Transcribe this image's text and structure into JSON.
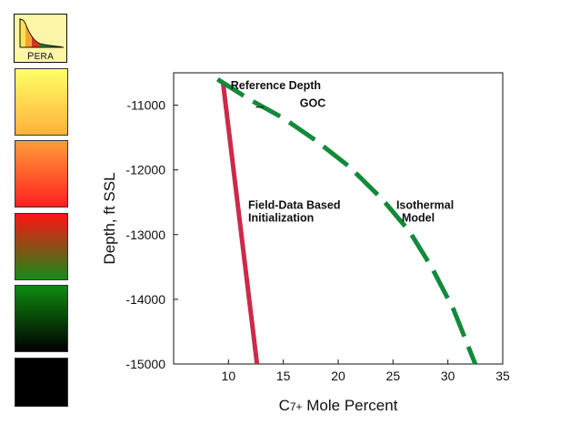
{
  "logo": {
    "first_letter": "P",
    "rest": "ERA",
    "icon": "distribution-curve-icon"
  },
  "sidebar_swatches": [
    {
      "from": "#ffff66",
      "to": "#ffb13b"
    },
    {
      "from": "#ff9c3a",
      "to": "#ff2020"
    },
    {
      "from": "#ff1414",
      "to": "#178a17"
    },
    {
      "from": "#0f8a0f",
      "to": "#000000"
    },
    {
      "from": "#000000",
      "to": "#000000"
    }
  ],
  "chart_data": {
    "type": "line",
    "xlabel_main": "C",
    "xlabel_sub": "7+",
    "xlabel_rest": " Mole Percent",
    "ylabel": "Depth, ft SSL",
    "xlim": [
      5,
      35
    ],
    "ylim": [
      -15000,
      -10500
    ],
    "x_ticks": [
      10,
      15,
      20,
      25,
      30,
      35
    ],
    "y_ticks": [
      -11000,
      -12000,
      -13000,
      -14000,
      -15000
    ],
    "grid": false,
    "series": [
      {
        "color": "#cc2a4a",
        "style": "solid",
        "x": [
          9.5,
          12.6
        ],
        "y": [
          -10650,
          -15000
        ]
      },
      {
        "color": "#128a3a",
        "style": "dashed",
        "x": [
          9.0,
          12.0,
          15.0,
          18.0,
          21.0,
          24.0,
          26.5,
          28.5,
          30.5,
          32.5
        ],
        "y": [
          -10600,
          -10920,
          -11200,
          -11550,
          -11950,
          -12450,
          -12950,
          -13500,
          -14150,
          -15000
        ]
      }
    ],
    "annotations": [
      {
        "id": "reference-depth",
        "text": "Reference Depth",
        "x": 10.2,
        "y": -10750
      },
      {
        "id": "goc",
        "text": "GOC",
        "x": 16.5,
        "y": -11030
      },
      {
        "id": "field-data-line1",
        "text": "Field-Data Based",
        "x": 11.8,
        "y": -12600
      },
      {
        "id": "field-data-line2",
        "text": "Initialization",
        "x": 11.8,
        "y": -12800
      },
      {
        "id": "isothermal-line1",
        "text": "Isothermal",
        "x": 25.3,
        "y": -12600
      },
      {
        "id": "isothermal-line2",
        "text": "Model",
        "x": 25.8,
        "y": -12800
      }
    ],
    "goc_marker": {
      "x": [
        12.5,
        13.2
      ],
      "y": -11030
    }
  }
}
